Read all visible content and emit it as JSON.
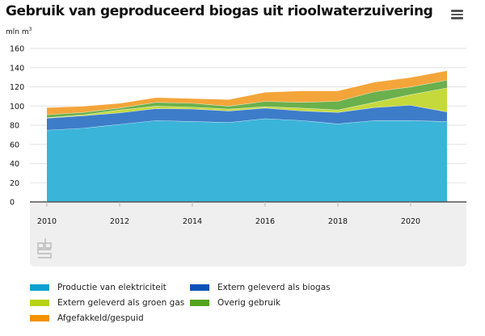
{
  "header": {
    "title": "Gebruik van geproduceerd biogas uit rioolwaterzuivering",
    "menu_icon": "hamburger-menu-icon",
    "unit_label": "mln m",
    "unit_sup": "3"
  },
  "source_logo": "cbs-logo",
  "chart_data": {
    "type": "area",
    "stacked": true,
    "title": "Gebruik van geproduceerd biogas uit rioolwaterzuivering",
    "xlabel": "",
    "ylabel": "mln m³",
    "x": [
      2010,
      2011,
      2012,
      2013,
      2014,
      2015,
      2016,
      2017,
      2018,
      2019,
      2020,
      2021
    ],
    "x_tick_labels": [
      "2010",
      "2012",
      "2014",
      "2016",
      "2018",
      "2020"
    ],
    "y_tick_labels": [
      "0",
      "20",
      "40",
      "60",
      "80",
      "100",
      "120",
      "140",
      "160"
    ],
    "ylim": [
      0,
      160
    ],
    "grid": true,
    "legend_position": "bottom",
    "series": [
      {
        "name": "Productie van elektriciteit",
        "color": "#3bb4d9",
        "values": [
          75,
          77,
          81,
          85,
          84,
          83,
          87,
          85,
          81.5,
          85,
          85,
          84
        ]
      },
      {
        "name": "Extern geleverd als biogas",
        "color": "#3d7cc9",
        "values": [
          12.5,
          13,
          12,
          12.5,
          13,
          12,
          11,
          10,
          12,
          13.5,
          16,
          10
        ]
      },
      {
        "name": "Extern geleverd als groen gas",
        "color": "#c5d93c",
        "values": [
          0.5,
          1,
          3,
          2.5,
          2,
          2,
          1.5,
          3,
          2.5,
          5.5,
          11,
          25
        ]
      },
      {
        "name": "Overig gebruik",
        "color": "#6ab04c",
        "values": [
          3,
          2.5,
          2,
          4,
          4,
          3,
          5.5,
          6,
          9,
          11,
          8,
          8
        ]
      },
      {
        "name": "Afgefakkeld/gespuid",
        "color": "#f4a53a",
        "values": [
          7.5,
          6.5,
          5,
          5,
          5,
          7,
          9.5,
          12,
          11,
          10,
          10,
          10
        ]
      }
    ]
  },
  "legend": [
    {
      "label": "Productie van elektriciteit",
      "color": "#0ea0d2"
    },
    {
      "label": "Extern geleverd als biogas",
      "color": "#0b53b8"
    },
    {
      "label": "Extern geleverd als groen gas",
      "color": "#b7d317"
    },
    {
      "label": "Overig gebruik",
      "color": "#53a31d"
    },
    {
      "label": "Afgefakkeld/gespuid",
      "color": "#f39200"
    }
  ]
}
